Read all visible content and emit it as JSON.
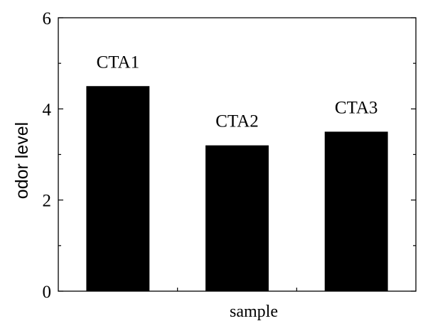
{
  "chart_data": {
    "type": "bar",
    "categories": [
      "CTA1",
      "CTA2",
      "CTA3"
    ],
    "values": [
      4.5,
      3.2,
      3.5
    ],
    "title": "",
    "xlabel": "sample",
    "ylabel": "odor level",
    "ylim": [
      0,
      6
    ],
    "yticks": [
      0,
      2,
      4,
      6
    ],
    "grid": false,
    "legend": "none",
    "bar_color": "#000000",
    "data_labels": [
      "CTA1",
      "CTA2",
      "CTA3"
    ]
  }
}
